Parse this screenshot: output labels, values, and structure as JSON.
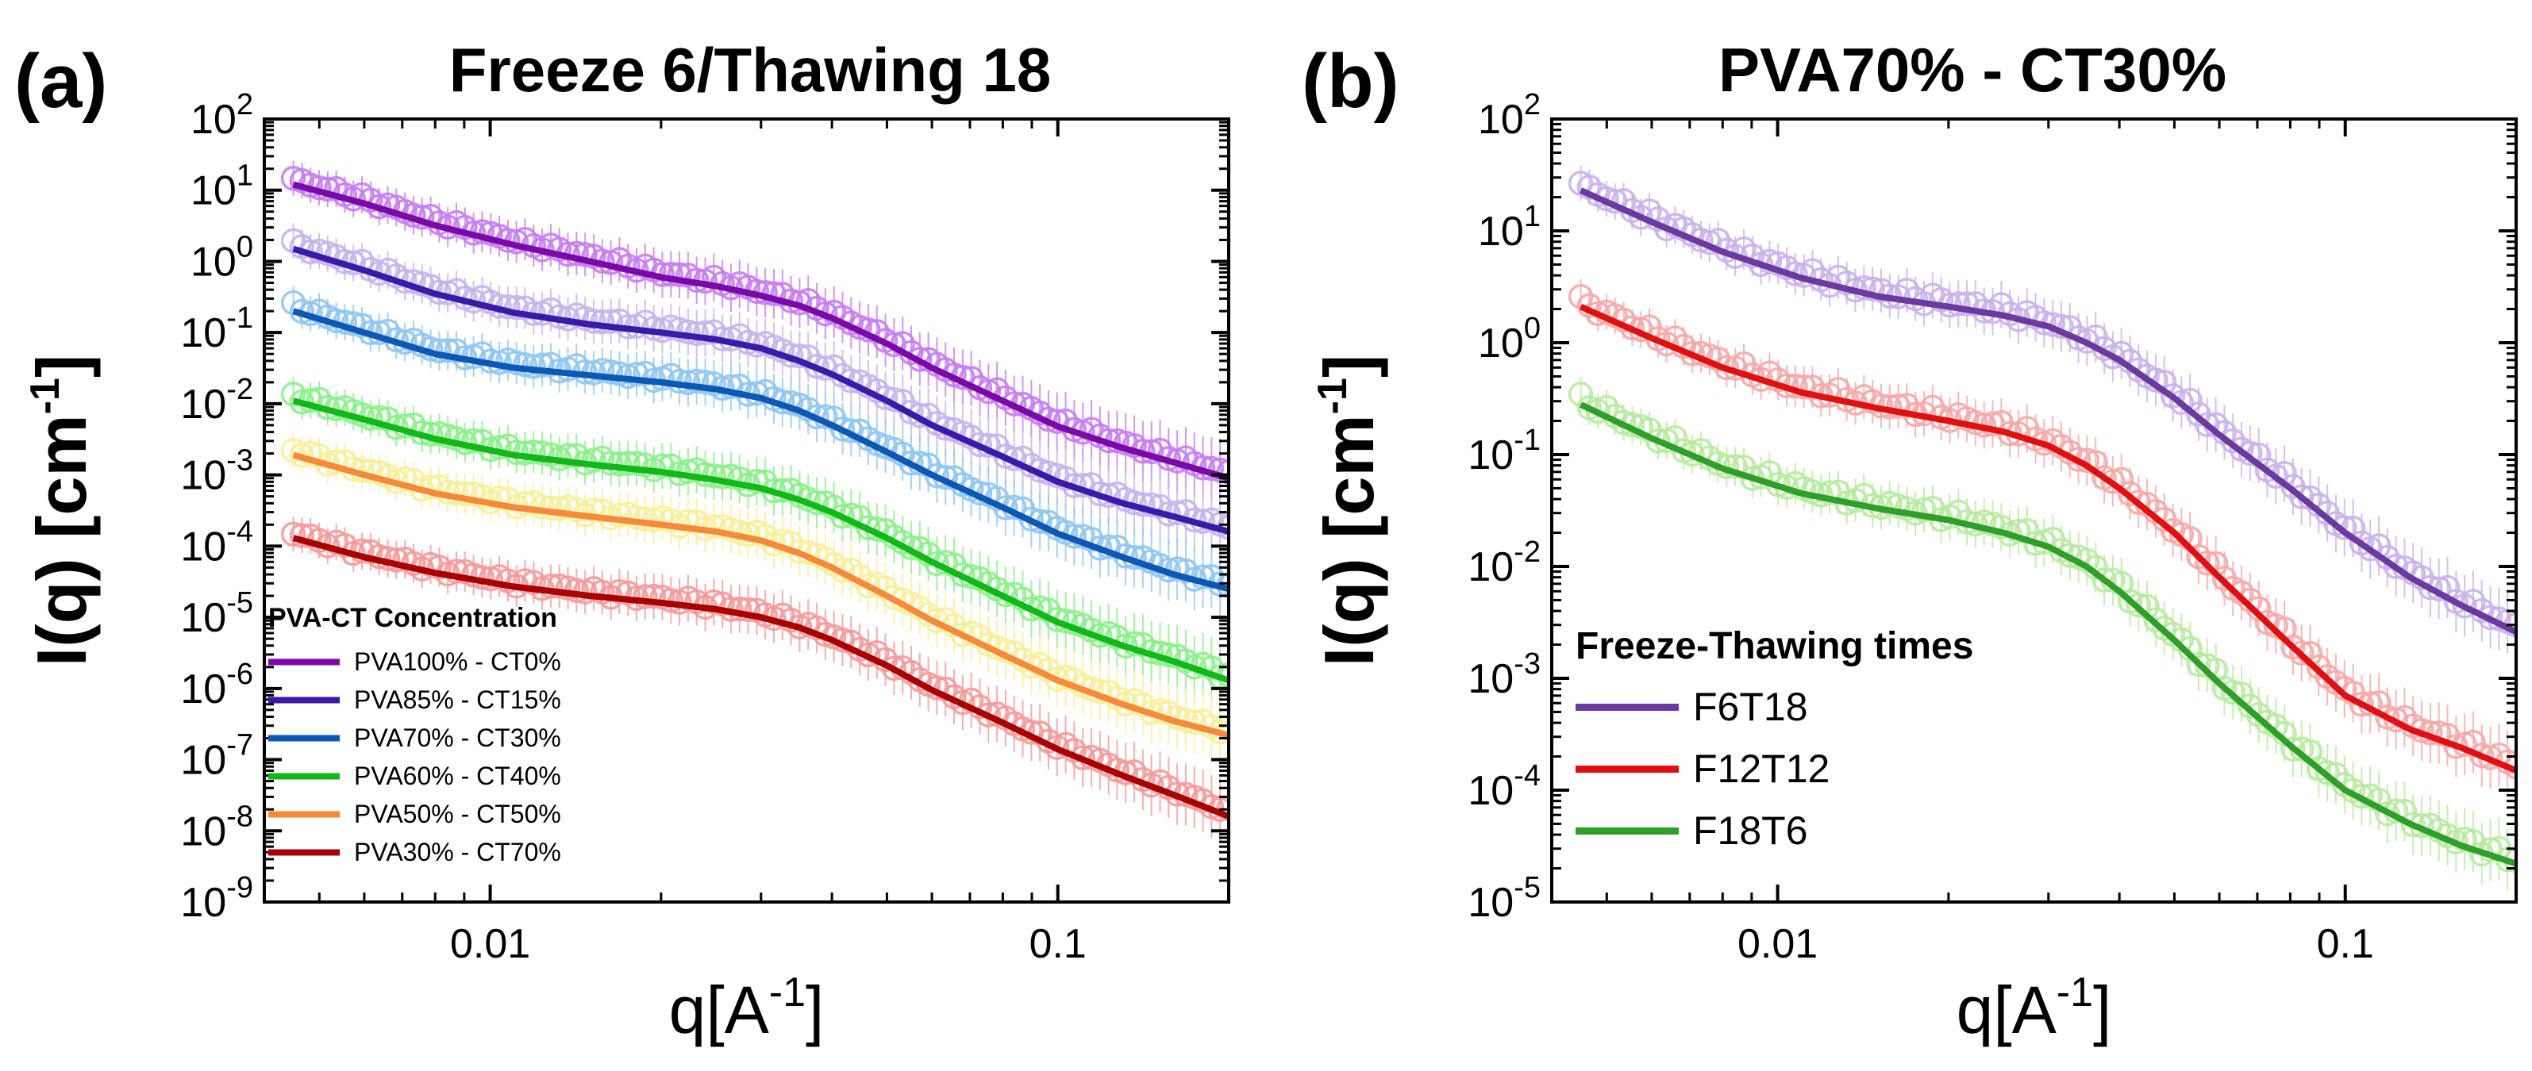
{
  "chart_data": [
    {
      "panel_label": "(a)",
      "title": "Freeze 6/Thawing 18",
      "type": "scatter",
      "xlabel": "q[A",
      "xlabel_sup": "-1",
      "xlabel_end": "]",
      "ylabel": "I(q)  [cm",
      "ylabel_sup": "-1",
      "ylabel_end": "]",
      "xscale": "log",
      "yscale": "log",
      "xlim": [
        0.004,
        0.2
      ],
      "ylim": [
        1e-09,
        100
      ],
      "x_ticks": [
        {
          "value": 0.01,
          "label": "0.01"
        },
        {
          "value": 0.1,
          "label": "0.1"
        }
      ],
      "y_ticks": [
        {
          "value": 100,
          "base": "10",
          "exp": "2"
        },
        {
          "value": 10,
          "base": "10",
          "exp": "1"
        },
        {
          "value": 1,
          "base": "10",
          "exp": "0"
        },
        {
          "value": 0.1,
          "base": "10",
          "exp": "-1"
        },
        {
          "value": 0.01,
          "base": "10",
          "exp": "-2"
        },
        {
          "value": 0.001,
          "base": "10",
          "exp": "-3"
        },
        {
          "value": 0.0001,
          "base": "10",
          "exp": "-4"
        },
        {
          "value": 1e-05,
          "base": "10",
          "exp": "-5"
        },
        {
          "value": 1e-06,
          "base": "10",
          "exp": "-6"
        },
        {
          "value": 1e-07,
          "base": "10",
          "exp": "-7"
        },
        {
          "value": 1e-08,
          "base": "10",
          "exp": "-8"
        },
        {
          "value": 1e-09,
          "base": "10",
          "exp": "-9"
        }
      ],
      "legend": {
        "title": "PVA-CT Concentration",
        "position": "bottom-left"
      },
      "series": [
        {
          "name": "PVA100% - CT0%",
          "color": "#7a0aa8",
          "marker_color": "#c77df2",
          "x": [
            0.0045,
            0.006,
            0.008,
            0.011,
            0.015,
            0.02,
            0.025,
            0.03,
            0.035,
            0.04,
            0.05,
            0.06,
            0.08,
            0.1,
            0.13,
            0.16,
            0.2
          ],
          "y": [
            12,
            6.5,
            3.2,
            1.7,
            1.0,
            0.6,
            0.45,
            0.33,
            0.24,
            0.16,
            0.07,
            0.032,
            0.011,
            0.0048,
            0.0024,
            0.0015,
            0.0009
          ]
        },
        {
          "name": "PVA85% - CT15%",
          "color": "#3a1aa8",
          "marker_color": "#c6b4ec",
          "x": [
            0.0045,
            0.006,
            0.008,
            0.011,
            0.015,
            0.02,
            0.025,
            0.03,
            0.035,
            0.04,
            0.05,
            0.06,
            0.08,
            0.1,
            0.13,
            0.16,
            0.2
          ],
          "y": [
            1.5,
            0.75,
            0.35,
            0.19,
            0.13,
            0.1,
            0.08,
            0.06,
            0.04,
            0.026,
            0.011,
            0.005,
            0.0018,
            0.0008,
            0.0004,
            0.00026,
            0.00016
          ]
        },
        {
          "name": "PVA70% - CT30%",
          "color": "#0d57b5",
          "marker_color": "#8fc6f2",
          "x": [
            0.0045,
            0.006,
            0.008,
            0.011,
            0.015,
            0.02,
            0.025,
            0.03,
            0.035,
            0.04,
            0.05,
            0.06,
            0.08,
            0.1,
            0.13,
            0.16,
            0.2
          ],
          "y": [
            0.2,
            0.1,
            0.05,
            0.032,
            0.025,
            0.02,
            0.016,
            0.012,
            0.008,
            0.005,
            0.0021,
            0.001,
            0.00035,
            0.00015,
            7e-05,
            4e-05,
            2.5e-05
          ]
        },
        {
          "name": "PVA60% - CT40%",
          "color": "#12b81a",
          "marker_color": "#8cef8a",
          "x": [
            0.0045,
            0.006,
            0.008,
            0.011,
            0.015,
            0.02,
            0.025,
            0.03,
            0.035,
            0.04,
            0.05,
            0.06,
            0.08,
            0.1,
            0.13,
            0.16,
            0.2
          ],
          "y": [
            0.011,
            0.006,
            0.0032,
            0.0019,
            0.0014,
            0.0011,
            0.00085,
            0.00065,
            0.00045,
            0.0003,
            0.00013,
            6e-05,
            2e-05,
            8.5e-06,
            4e-06,
            2.4e-06,
            1.3e-06
          ]
        },
        {
          "name": "PVA50% - CT50%",
          "color": "#f58a3a",
          "marker_color": "#f7f09a",
          "x": [
            0.0045,
            0.006,
            0.008,
            0.011,
            0.015,
            0.02,
            0.025,
            0.03,
            0.035,
            0.04,
            0.05,
            0.06,
            0.08,
            0.1,
            0.13,
            0.16,
            0.2
          ],
          "y": [
            0.0019,
            0.001,
            0.00055,
            0.00035,
            0.00026,
            0.0002,
            0.00016,
            0.00012,
            8e-05,
            5e-05,
            2e-05,
            9e-06,
            3e-06,
            1.3e-06,
            6e-07,
            3.5e-07,
            2.2e-07
          ]
        },
        {
          "name": "PVA30% - CT70%",
          "color": "#a80000",
          "marker_color": "#f59a9a",
          "x": [
            0.0045,
            0.006,
            0.008,
            0.011,
            0.015,
            0.02,
            0.025,
            0.03,
            0.035,
            0.04,
            0.05,
            0.06,
            0.08,
            0.1,
            0.13,
            0.16,
            0.2
          ],
          "y": [
            0.00013,
            7e-05,
            4.2e-05,
            2.7e-05,
            2e-05,
            1.6e-05,
            1.3e-05,
            1e-05,
            7.2e-06,
            4.8e-06,
            2.1e-06,
            9.5e-07,
            3.3e-07,
            1.4e-07,
            6e-08,
            3.2e-08,
            1.6e-08
          ]
        }
      ]
    },
    {
      "panel_label": "(b)",
      "title": "PVA70% - CT30%",
      "type": "scatter",
      "xlabel": "q[A",
      "xlabel_sup": "-1",
      "xlabel_end": "]",
      "ylabel": "I(q)  [cm",
      "ylabel_sup": "-1",
      "ylabel_end": "]",
      "xscale": "log",
      "yscale": "log",
      "xlim": [
        0.004,
        0.2
      ],
      "ylim": [
        1e-05,
        100
      ],
      "x_ticks": [
        {
          "value": 0.01,
          "label": "0.01"
        },
        {
          "value": 0.1,
          "label": "0.1"
        }
      ],
      "y_ticks": [
        {
          "value": 100,
          "base": "10",
          "exp": "2"
        },
        {
          "value": 10,
          "base": "10",
          "exp": "1"
        },
        {
          "value": 1,
          "base": "10",
          "exp": "0"
        },
        {
          "value": 0.1,
          "base": "10",
          "exp": "-1"
        },
        {
          "value": 0.01,
          "base": "10",
          "exp": "-2"
        },
        {
          "value": 0.001,
          "base": "10",
          "exp": "-3"
        },
        {
          "value": 0.0001,
          "base": "10",
          "exp": "-4"
        },
        {
          "value": 1e-05,
          "base": "10",
          "exp": "-5"
        }
      ],
      "legend": {
        "title": "Freeze-Thawing times",
        "position": "bottom-left"
      },
      "series": [
        {
          "name": "F6T18",
          "color": "#6a3aa0",
          "marker_color": "#c9b2ea",
          "x": [
            0.0045,
            0.006,
            0.008,
            0.011,
            0.015,
            0.02,
            0.025,
            0.03,
            0.035,
            0.04,
            0.05,
            0.06,
            0.08,
            0.1,
            0.13,
            0.16,
            0.2
          ],
          "y": [
            23,
            12,
            6.5,
            3.8,
            2.6,
            2.1,
            1.75,
            1.4,
            1.0,
            0.7,
            0.32,
            0.15,
            0.05,
            0.02,
            0.008,
            0.0045,
            0.0026
          ]
        },
        {
          "name": "F12T12",
          "color": "#e01010",
          "marker_color": "#f5a8a8",
          "x": [
            0.0045,
            0.006,
            0.008,
            0.011,
            0.015,
            0.02,
            0.025,
            0.03,
            0.035,
            0.04,
            0.05,
            0.06,
            0.08,
            0.1,
            0.13,
            0.16,
            0.2
          ],
          "y": [
            2.1,
            1.1,
            0.6,
            0.36,
            0.26,
            0.2,
            0.16,
            0.12,
            0.08,
            0.05,
            0.02,
            0.008,
            0.002,
            0.0007,
            0.00035,
            0.00024,
            0.00015
          ]
        },
        {
          "name": "F18T6",
          "color": "#2ea02a",
          "marker_color": "#b8eaa0",
          "x": [
            0.0045,
            0.006,
            0.008,
            0.011,
            0.015,
            0.02,
            0.025,
            0.03,
            0.035,
            0.04,
            0.05,
            0.06,
            0.08,
            0.1,
            0.13,
            0.16,
            0.2
          ],
          "y": [
            0.28,
            0.14,
            0.075,
            0.045,
            0.033,
            0.026,
            0.02,
            0.015,
            0.01,
            0.006,
            0.0022,
            0.0009,
            0.00025,
            0.0001,
            5e-05,
            3.2e-05,
            2.2e-05
          ]
        }
      ]
    }
  ]
}
